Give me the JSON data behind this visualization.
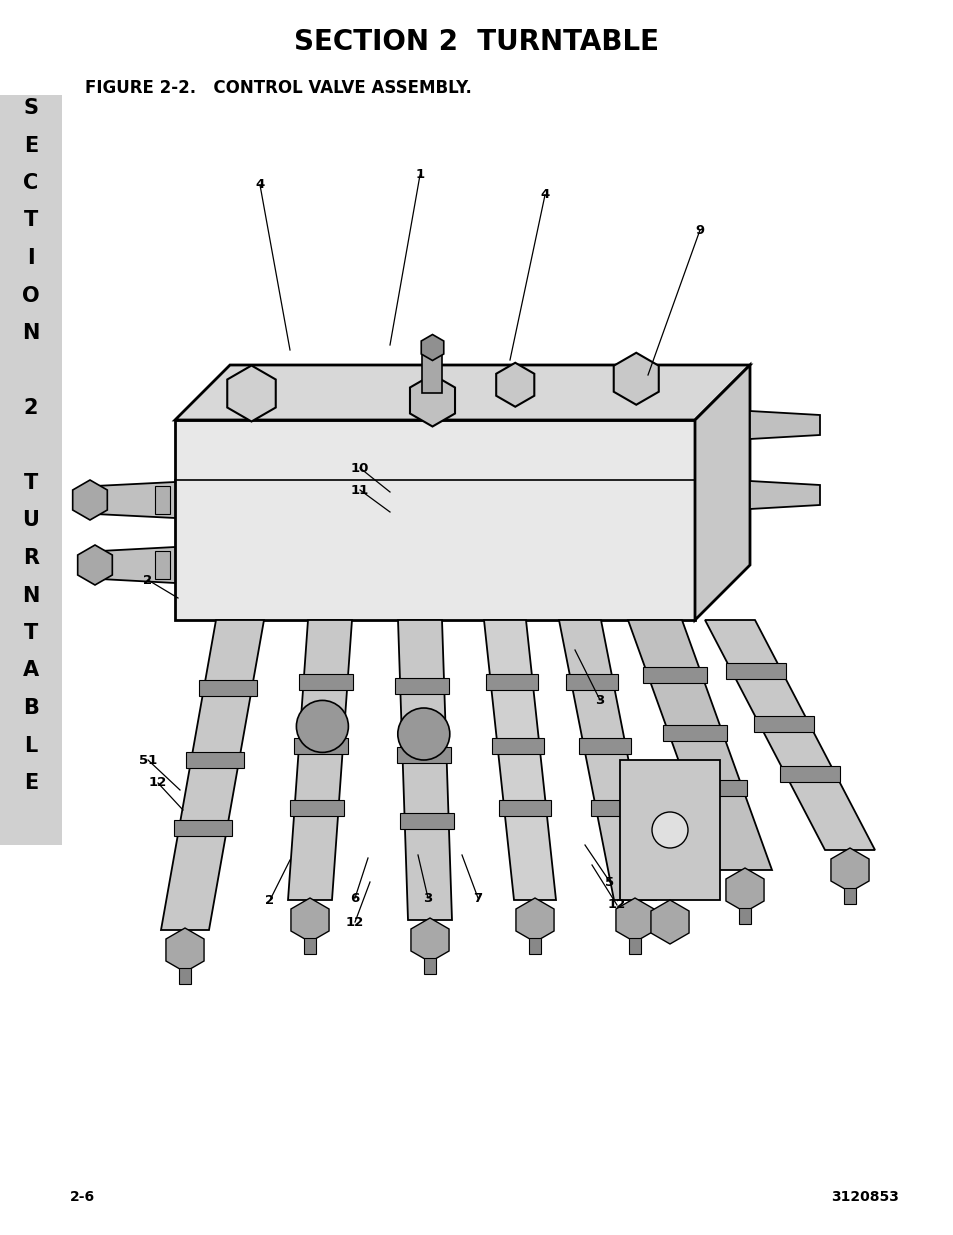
{
  "page_title": "SECTION 2  TURNTABLE",
  "figure_label": "FIGURE 2-2.   CONTROL VALVE ASSEMBLY.",
  "page_number_left": "2-6",
  "page_number_right": "3120853",
  "sidebar_chars": [
    "S",
    "E",
    "C",
    "T",
    "I",
    "O",
    "N",
    "",
    "2",
    "",
    "T",
    "U",
    "R",
    "N",
    "T",
    "A",
    "B",
    "L",
    "E"
  ],
  "sidebar_bg": "#d0d0d0",
  "background_color": "#ffffff",
  "title_fontsize": 20,
  "figure_label_fontsize": 12,
  "page_num_fontsize": 10,
  "sidebar_fontsize": 15
}
